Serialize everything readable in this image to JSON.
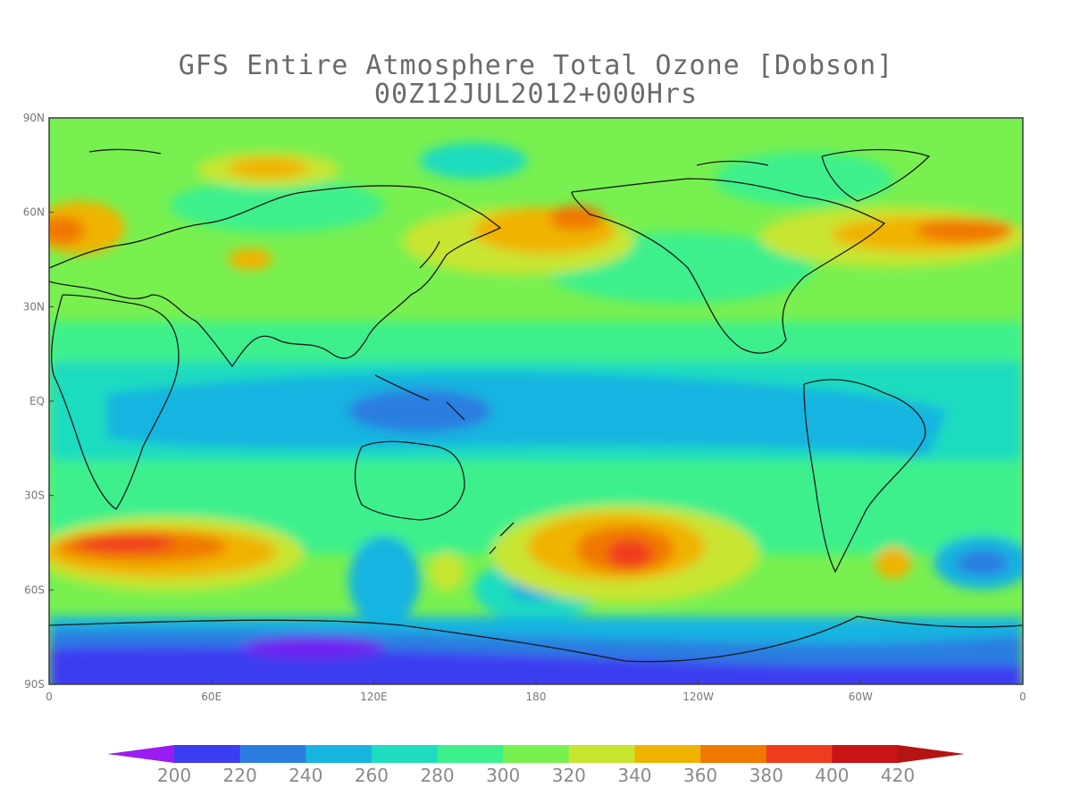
{
  "title": "GFS Entire Atmosphere Total Ozone [Dobson]",
  "subtitle": "00Z12JUL2012+000Hrs",
  "lat_ticks": [
    "90N",
    "60N",
    "30N",
    "EQ",
    "30S",
    "60S",
    "90S"
  ],
  "lon_ticks": [
    "0",
    "60E",
    "120E",
    "180",
    "120W",
    "60W",
    "0"
  ],
  "colorbar": {
    "min_arrow_color": "#9b1cf0",
    "max_arrow_color": "#b41414",
    "colors": [
      "#3c3cf0",
      "#2b7ee0",
      "#18b4e0",
      "#1edcc0",
      "#3cf08c",
      "#78f050",
      "#c8e630",
      "#f0b400",
      "#f07800",
      "#f03c1e",
      "#c81414"
    ],
    "labels": [
      "200",
      "220",
      "240",
      "260",
      "280",
      "300",
      "320",
      "340",
      "360",
      "380",
      "400",
      "420"
    ]
  },
  "colors": {
    "ocean_base": "#78f050",
    "coastline": "#1a1a1a",
    "frame": "#3c3c3c"
  }
}
